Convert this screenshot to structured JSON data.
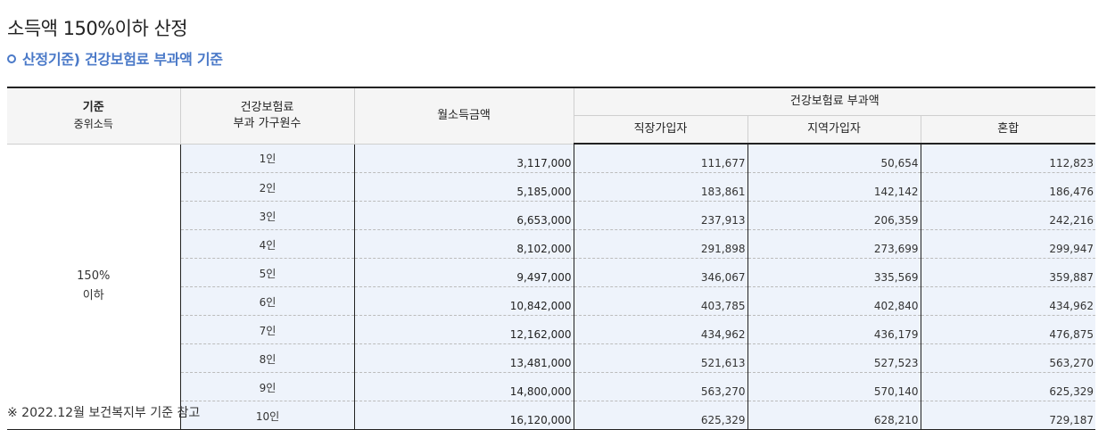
{
  "title": "소득액 150%이하 산정",
  "subtitle": "산정기준) 건강보험료 부과액 기준",
  "table": {
    "headers": {
      "criteria_line1": "기준",
      "criteria_line2": "중위소득",
      "household_line1": "건강보험료",
      "household_line2": "부과 가구원수",
      "income": "월소득금액",
      "premium_group": "건강보험료 부과액",
      "employee": "직장가입자",
      "regional": "지역가입자",
      "mixed": "혼합"
    },
    "row_head_line1": "150%",
    "row_head_line2": "이하",
    "rows": [
      {
        "size": "1인",
        "income": "3,117,000",
        "employee": "111,677",
        "regional": "50,654",
        "mixed": "112,823"
      },
      {
        "size": "2인",
        "income": "5,185,000",
        "employee": "183,861",
        "regional": "142,142",
        "mixed": "186,476"
      },
      {
        "size": "3인",
        "income": "6,653,000",
        "employee": "237,913",
        "regional": "206,359",
        "mixed": "242,216"
      },
      {
        "size": "4인",
        "income": "8,102,000",
        "employee": "291,898",
        "regional": "273,699",
        "mixed": "299,947"
      },
      {
        "size": "5인",
        "income": "9,497,000",
        "employee": "346,067",
        "regional": "335,569",
        "mixed": "359,887"
      },
      {
        "size": "6인",
        "income": "10,842,000",
        "employee": "403,785",
        "regional": "402,840",
        "mixed": "434,962"
      },
      {
        "size": "7인",
        "income": "12,162,000",
        "employee": "434,962",
        "regional": "436,179",
        "mixed": "476,875"
      },
      {
        "size": "8인",
        "income": "13,481,000",
        "employee": "521,613",
        "regional": "527,523",
        "mixed": "563,270"
      },
      {
        "size": "9인",
        "income": "14,800,000",
        "employee": "563,270",
        "regional": "570,140",
        "mixed": "625,329"
      },
      {
        "size": "10인",
        "income": "16,120,000",
        "employee": "625,329",
        "regional": "628,210",
        "mixed": "729,187"
      }
    ]
  },
  "footnote": "※ 2022.12월 보건복지부 기준 참고",
  "colors": {
    "subtitle": "#4a79c8",
    "header_bg": "#f5f5f5",
    "row_shade": "#eef3fb"
  }
}
